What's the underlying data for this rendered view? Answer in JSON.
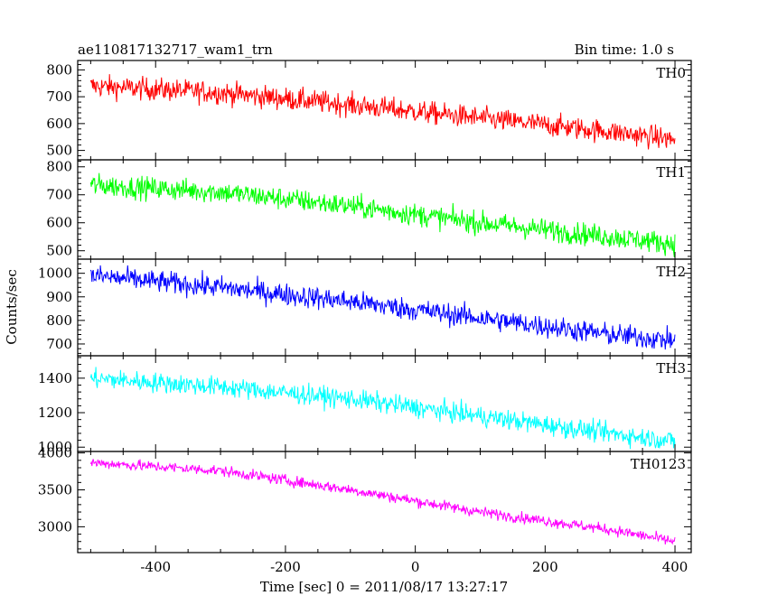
{
  "chart_data": {
    "type": "line",
    "title": "ae110817132717_wam1_trn",
    "subtitle": "Bin time: 1.0 s",
    "xlabel": "Time [sec] 0 = 2011/08/17 13:27:17",
    "ylabel": "Counts/sec",
    "xlim": [
      -520,
      425
    ],
    "x_ticks": [
      -400,
      -200,
      0,
      200,
      400
    ],
    "x_range": [
      -500,
      400
    ],
    "panels": [
      {
        "name": "TH0",
        "color": "#ff0000",
        "ylim": [
          465,
          835
        ],
        "y_ticks": [
          500,
          600,
          700,
          800
        ],
        "trend": [
          [
            -500,
            740
          ],
          [
            -300,
            715
          ],
          [
            -100,
            670
          ],
          [
            100,
            620
          ],
          [
            300,
            570
          ],
          [
            400,
            540
          ]
        ],
        "noise": 40
      },
      {
        "name": "TH1",
        "color": "#00ff00",
        "ylim": [
          470,
          825
        ],
        "y_ticks": [
          500,
          600,
          700,
          800
        ],
        "trend": [
          [
            -500,
            735
          ],
          [
            -300,
            710
          ],
          [
            -100,
            660
          ],
          [
            100,
            600
          ],
          [
            300,
            550
          ],
          [
            400,
            525
          ]
        ],
        "noise": 38
      },
      {
        "name": "TH2",
        "color": "#0000ff",
        "ylim": [
          650,
          1060
        ],
        "y_ticks": [
          700,
          800,
          900,
          1000
        ],
        "trend": [
          [
            -500,
            990
          ],
          [
            -300,
            940
          ],
          [
            -100,
            880
          ],
          [
            100,
            810
          ],
          [
            300,
            740
          ],
          [
            400,
            715
          ]
        ],
        "noise": 45
      },
      {
        "name": "TH3",
        "color": "#00ffff",
        "ylim": [
          975,
          1530
        ],
        "y_ticks": [
          1000,
          1200,
          1400
        ],
        "trend": [
          [
            -500,
            1400
          ],
          [
            -300,
            1350
          ],
          [
            -100,
            1280
          ],
          [
            100,
            1180
          ],
          [
            300,
            1080
          ],
          [
            400,
            1035
          ]
        ],
        "noise": 55
      },
      {
        "name": "TH0123",
        "color": "#ff00ff",
        "ylim": [
          2650,
          4020
        ],
        "y_ticks": [
          3000,
          3500,
          4000
        ],
        "trend": [
          [
            -500,
            3870
          ],
          [
            -300,
            3760
          ],
          [
            -100,
            3500
          ],
          [
            100,
            3200
          ],
          [
            300,
            2960
          ],
          [
            400,
            2800
          ]
        ],
        "noise": 70
      }
    ]
  }
}
